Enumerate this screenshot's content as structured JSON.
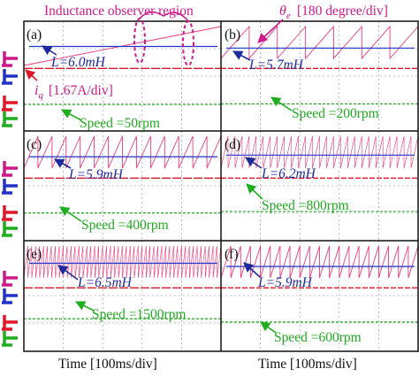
{
  "header": {
    "region_label": "Inductance observer region",
    "theta_label": "θ",
    "theta_sub": "e",
    "theta_scale": "[180 degree/div]"
  },
  "iq": {
    "symbol": "i",
    "sub": "q",
    "scale": "[1.67A/div]"
  },
  "xlabels": [
    "Time  [100ms/div]",
    "Time  [100ms/div]"
  ],
  "colors": {
    "theta": "#e8246e",
    "inductance": "#2233c8",
    "current": "#e0162b",
    "speed": "#1fae1f",
    "annotation": "#cc1a8a",
    "grid": "#8a8a8a",
    "background": "#ffffff"
  },
  "chart_data": [
    {
      "type": "line",
      "panel_label": "(a)",
      "inductance_label": "L=6.0mH",
      "speed_label": "Speed =50rpm",
      "inductance_mH": 6.0,
      "speed_rpm": 50,
      "theta_sawtooth_cycles": 1
    },
    {
      "type": "line",
      "panel_label": "(b)",
      "inductance_label": "L=5.7mH",
      "speed_label": "Speed =200rpm",
      "inductance_mH": 5.7,
      "speed_rpm": 200,
      "theta_sawtooth_cycles": 7
    },
    {
      "type": "line",
      "panel_label": "(c)",
      "inductance_label": "L=5.9mH",
      "speed_label": "Speed =400rpm",
      "inductance_mH": 5.9,
      "speed_rpm": 400,
      "theta_sawtooth_cycles": 14
    },
    {
      "type": "line",
      "panel_label": "(d)",
      "inductance_label": "L=6.2mH",
      "speed_label": "Speed =800rpm",
      "inductance_mH": 6.2,
      "speed_rpm": 800,
      "theta_sawtooth_cycles": 28
    },
    {
      "type": "line",
      "panel_label": "(e)",
      "inductance_label": "L=6.5mH",
      "speed_label": "Speed =1500rpm",
      "inductance_mH": 6.5,
      "speed_rpm": 1500,
      "theta_sawtooth_cycles": 50
    },
    {
      "type": "line",
      "panel_label": "(f)",
      "inductance_label": "L=5.9mH",
      "speed_label": "Speed =600rpm",
      "inductance_mH": 5.9,
      "speed_rpm": 600,
      "theta_sawtooth_cycles": 20
    }
  ]
}
